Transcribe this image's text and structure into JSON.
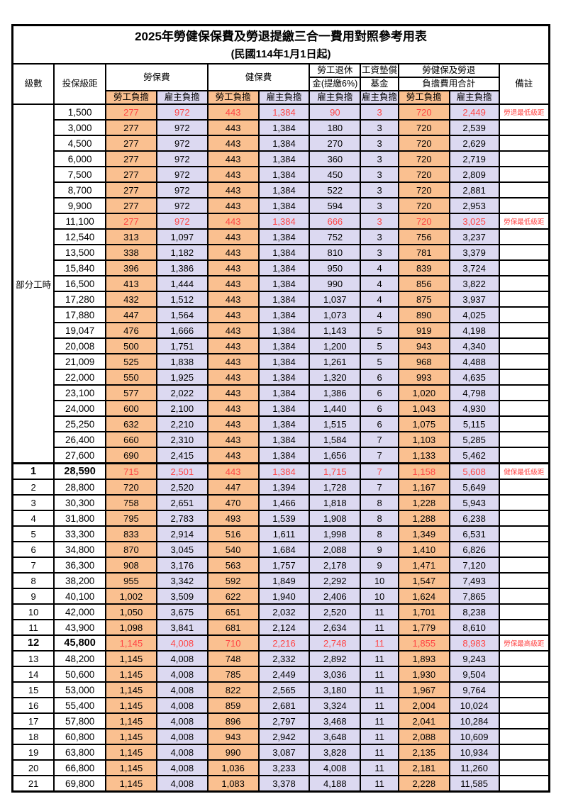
{
  "title": "2025年勞健保保費及勞退提繳三合一費用對照參考用表",
  "subtitle": "(民國114年1月1日起)",
  "columns": {
    "level": "級數",
    "bracket": "投保級距",
    "labor_insurance": "勞保費",
    "health_insurance": "健保費",
    "pension_line1": "勞工退休",
    "pension_line2": "金(提繳6%)",
    "wage_fund_line1": "工資墊償",
    "wage_fund_line2": "基金",
    "total_line1": "勞健保及勞退",
    "total_line2": "負擔費用合計",
    "remark": "備註",
    "employee": "勞工負擔",
    "employer": "雇主負擔"
  },
  "part_time_label": "部分工時",
  "colors": {
    "employee_bg": "#fac090",
    "employer_bg": "#dcd9f1",
    "highlight_text": "#ff4545",
    "border": "#000000"
  },
  "rows": [
    {
      "section": "part_time",
      "level": "",
      "bracket": "1,500",
      "li_emp": "277",
      "li_er": "972",
      "hi_emp": "443",
      "hi_er": "1,384",
      "pension": "90",
      "wage_fund": "3",
      "sum_emp": "720",
      "sum_er": "2,449",
      "note": "勞退最低級距",
      "highlight": true,
      "emphasis": false
    },
    {
      "section": "part_time",
      "level": "",
      "bracket": "3,000",
      "li_emp": "277",
      "li_er": "972",
      "hi_emp": "443",
      "hi_er": "1,384",
      "pension": "180",
      "wage_fund": "3",
      "sum_emp": "720",
      "sum_er": "2,539",
      "note": "",
      "highlight": false,
      "emphasis": false
    },
    {
      "section": "part_time",
      "level": "",
      "bracket": "4,500",
      "li_emp": "277",
      "li_er": "972",
      "hi_emp": "443",
      "hi_er": "1,384",
      "pension": "270",
      "wage_fund": "3",
      "sum_emp": "720",
      "sum_er": "2,629",
      "note": "",
      "highlight": false,
      "emphasis": false
    },
    {
      "section": "part_time",
      "level": "",
      "bracket": "6,000",
      "li_emp": "277",
      "li_er": "972",
      "hi_emp": "443",
      "hi_er": "1,384",
      "pension": "360",
      "wage_fund": "3",
      "sum_emp": "720",
      "sum_er": "2,719",
      "note": "",
      "highlight": false,
      "emphasis": false
    },
    {
      "section": "part_time",
      "level": "",
      "bracket": "7,500",
      "li_emp": "277",
      "li_er": "972",
      "hi_emp": "443",
      "hi_er": "1,384",
      "pension": "450",
      "wage_fund": "3",
      "sum_emp": "720",
      "sum_er": "2,809",
      "note": "",
      "highlight": false,
      "emphasis": false
    },
    {
      "section": "part_time",
      "level": "",
      "bracket": "8,700",
      "li_emp": "277",
      "li_er": "972",
      "hi_emp": "443",
      "hi_er": "1,384",
      "pension": "522",
      "wage_fund": "3",
      "sum_emp": "720",
      "sum_er": "2,881",
      "note": "",
      "highlight": false,
      "emphasis": false
    },
    {
      "section": "part_time",
      "level": "",
      "bracket": "9,900",
      "li_emp": "277",
      "li_er": "972",
      "hi_emp": "443",
      "hi_er": "1,384",
      "pension": "594",
      "wage_fund": "3",
      "sum_emp": "720",
      "sum_er": "2,953",
      "note": "",
      "highlight": false,
      "emphasis": false
    },
    {
      "section": "part_time",
      "level": "",
      "bracket": "11,100",
      "li_emp": "277",
      "li_er": "972",
      "hi_emp": "443",
      "hi_er": "1,384",
      "pension": "666",
      "wage_fund": "3",
      "sum_emp": "720",
      "sum_er": "3,025",
      "note": "勞保最低級距",
      "highlight": true,
      "emphasis": false
    },
    {
      "section": "part_time",
      "level": "",
      "bracket": "12,540",
      "li_emp": "313",
      "li_er": "1,097",
      "hi_emp": "443",
      "hi_er": "1,384",
      "pension": "752",
      "wage_fund": "3",
      "sum_emp": "756",
      "sum_er": "3,237",
      "note": "",
      "highlight": false,
      "emphasis": false
    },
    {
      "section": "part_time",
      "level": "",
      "bracket": "13,500",
      "li_emp": "338",
      "li_er": "1,182",
      "hi_emp": "443",
      "hi_er": "1,384",
      "pension": "810",
      "wage_fund": "3",
      "sum_emp": "781",
      "sum_er": "3,379",
      "note": "",
      "highlight": false,
      "emphasis": false
    },
    {
      "section": "part_time",
      "level": "",
      "bracket": "15,840",
      "li_emp": "396",
      "li_er": "1,386",
      "hi_emp": "443",
      "hi_er": "1,384",
      "pension": "950",
      "wage_fund": "4",
      "sum_emp": "839",
      "sum_er": "3,724",
      "note": "",
      "highlight": false,
      "emphasis": false
    },
    {
      "section": "part_time",
      "level": "",
      "bracket": "16,500",
      "li_emp": "413",
      "li_er": "1,444",
      "hi_emp": "443",
      "hi_er": "1,384",
      "pension": "990",
      "wage_fund": "4",
      "sum_emp": "856",
      "sum_er": "3,822",
      "note": "",
      "highlight": false,
      "emphasis": false
    },
    {
      "section": "part_time",
      "level": "",
      "bracket": "17,280",
      "li_emp": "432",
      "li_er": "1,512",
      "hi_emp": "443",
      "hi_er": "1,384",
      "pension": "1,037",
      "wage_fund": "4",
      "sum_emp": "875",
      "sum_er": "3,937",
      "note": "",
      "highlight": false,
      "emphasis": false
    },
    {
      "section": "part_time",
      "level": "",
      "bracket": "17,880",
      "li_emp": "447",
      "li_er": "1,564",
      "hi_emp": "443",
      "hi_er": "1,384",
      "pension": "1,073",
      "wage_fund": "4",
      "sum_emp": "890",
      "sum_er": "4,025",
      "note": "",
      "highlight": false,
      "emphasis": false
    },
    {
      "section": "part_time",
      "level": "",
      "bracket": "19,047",
      "li_emp": "476",
      "li_er": "1,666",
      "hi_emp": "443",
      "hi_er": "1,384",
      "pension": "1,143",
      "wage_fund": "5",
      "sum_emp": "919",
      "sum_er": "4,198",
      "note": "",
      "highlight": false,
      "emphasis": false
    },
    {
      "section": "part_time",
      "level": "",
      "bracket": "20,008",
      "li_emp": "500",
      "li_er": "1,751",
      "hi_emp": "443",
      "hi_er": "1,384",
      "pension": "1,200",
      "wage_fund": "5",
      "sum_emp": "943",
      "sum_er": "4,340",
      "note": "",
      "highlight": false,
      "emphasis": false
    },
    {
      "section": "part_time",
      "level": "",
      "bracket": "21,009",
      "li_emp": "525",
      "li_er": "1,838",
      "hi_emp": "443",
      "hi_er": "1,384",
      "pension": "1,261",
      "wage_fund": "5",
      "sum_emp": "968",
      "sum_er": "4,488",
      "note": "",
      "highlight": false,
      "emphasis": false
    },
    {
      "section": "part_time",
      "level": "",
      "bracket": "22,000",
      "li_emp": "550",
      "li_er": "1,925",
      "hi_emp": "443",
      "hi_er": "1,384",
      "pension": "1,320",
      "wage_fund": "6",
      "sum_emp": "993",
      "sum_er": "4,635",
      "note": "",
      "highlight": false,
      "emphasis": false
    },
    {
      "section": "part_time",
      "level": "",
      "bracket": "23,100",
      "li_emp": "577",
      "li_er": "2,022",
      "hi_emp": "443",
      "hi_er": "1,384",
      "pension": "1,386",
      "wage_fund": "6",
      "sum_emp": "1,020",
      "sum_er": "4,798",
      "note": "",
      "highlight": false,
      "emphasis": false
    },
    {
      "section": "part_time",
      "level": "",
      "bracket": "24,000",
      "li_emp": "600",
      "li_er": "2,100",
      "hi_emp": "443",
      "hi_er": "1,384",
      "pension": "1,440",
      "wage_fund": "6",
      "sum_emp": "1,043",
      "sum_er": "4,930",
      "note": "",
      "highlight": false,
      "emphasis": false
    },
    {
      "section": "part_time",
      "level": "",
      "bracket": "25,250",
      "li_emp": "632",
      "li_er": "2,210",
      "hi_emp": "443",
      "hi_er": "1,384",
      "pension": "1,515",
      "wage_fund": "6",
      "sum_emp": "1,075",
      "sum_er": "5,115",
      "note": "",
      "highlight": false,
      "emphasis": false
    },
    {
      "section": "part_time",
      "level": "",
      "bracket": "26,400",
      "li_emp": "660",
      "li_er": "2,310",
      "hi_emp": "443",
      "hi_er": "1,384",
      "pension": "1,584",
      "wage_fund": "7",
      "sum_emp": "1,103",
      "sum_er": "5,285",
      "note": "",
      "highlight": false,
      "emphasis": false
    },
    {
      "section": "part_time",
      "level": "",
      "bracket": "27,600",
      "li_emp": "690",
      "li_er": "2,415",
      "hi_emp": "443",
      "hi_er": "1,384",
      "pension": "1,656",
      "wage_fund": "7",
      "sum_emp": "1,133",
      "sum_er": "5,462",
      "note": "",
      "highlight": false,
      "emphasis": false
    },
    {
      "section": "level",
      "level": "1",
      "bracket": "28,590",
      "li_emp": "715",
      "li_er": "2,501",
      "hi_emp": "443",
      "hi_er": "1,384",
      "pension": "1,715",
      "wage_fund": "7",
      "sum_emp": "1,158",
      "sum_er": "5,608",
      "note": "健保最低級距",
      "highlight": true,
      "emphasis": true
    },
    {
      "section": "level",
      "level": "2",
      "bracket": "28,800",
      "li_emp": "720",
      "li_er": "2,520",
      "hi_emp": "447",
      "hi_er": "1,394",
      "pension": "1,728",
      "wage_fund": "7",
      "sum_emp": "1,167",
      "sum_er": "5,649",
      "note": "",
      "highlight": false,
      "emphasis": false
    },
    {
      "section": "level",
      "level": "3",
      "bracket": "30,300",
      "li_emp": "758",
      "li_er": "2,651",
      "hi_emp": "470",
      "hi_er": "1,466",
      "pension": "1,818",
      "wage_fund": "8",
      "sum_emp": "1,228",
      "sum_er": "5,943",
      "note": "",
      "highlight": false,
      "emphasis": false
    },
    {
      "section": "level",
      "level": "4",
      "bracket": "31,800",
      "li_emp": "795",
      "li_er": "2,783",
      "hi_emp": "493",
      "hi_er": "1,539",
      "pension": "1,908",
      "wage_fund": "8",
      "sum_emp": "1,288",
      "sum_er": "6,238",
      "note": "",
      "highlight": false,
      "emphasis": false
    },
    {
      "section": "level",
      "level": "5",
      "bracket": "33,300",
      "li_emp": "833",
      "li_er": "2,914",
      "hi_emp": "516",
      "hi_er": "1,611",
      "pension": "1,998",
      "wage_fund": "8",
      "sum_emp": "1,349",
      "sum_er": "6,531",
      "note": "",
      "highlight": false,
      "emphasis": false
    },
    {
      "section": "level",
      "level": "6",
      "bracket": "34,800",
      "li_emp": "870",
      "li_er": "3,045",
      "hi_emp": "540",
      "hi_er": "1,684",
      "pension": "2,088",
      "wage_fund": "9",
      "sum_emp": "1,410",
      "sum_er": "6,826",
      "note": "",
      "highlight": false,
      "emphasis": false
    },
    {
      "section": "level",
      "level": "7",
      "bracket": "36,300",
      "li_emp": "908",
      "li_er": "3,176",
      "hi_emp": "563",
      "hi_er": "1,757",
      "pension": "2,178",
      "wage_fund": "9",
      "sum_emp": "1,471",
      "sum_er": "7,120",
      "note": "",
      "highlight": false,
      "emphasis": false
    },
    {
      "section": "level",
      "level": "8",
      "bracket": "38,200",
      "li_emp": "955",
      "li_er": "3,342",
      "hi_emp": "592",
      "hi_er": "1,849",
      "pension": "2,292",
      "wage_fund": "10",
      "sum_emp": "1,547",
      "sum_er": "7,493",
      "note": "",
      "highlight": false,
      "emphasis": false
    },
    {
      "section": "level",
      "level": "9",
      "bracket": "40,100",
      "li_emp": "1,002",
      "li_er": "3,509",
      "hi_emp": "622",
      "hi_er": "1,940",
      "pension": "2,406",
      "wage_fund": "10",
      "sum_emp": "1,624",
      "sum_er": "7,865",
      "note": "",
      "highlight": false,
      "emphasis": false
    },
    {
      "section": "level",
      "level": "10",
      "bracket": "42,000",
      "li_emp": "1,050",
      "li_er": "3,675",
      "hi_emp": "651",
      "hi_er": "2,032",
      "pension": "2,520",
      "wage_fund": "11",
      "sum_emp": "1,701",
      "sum_er": "8,238",
      "note": "",
      "highlight": false,
      "emphasis": false
    },
    {
      "section": "level",
      "level": "11",
      "bracket": "43,900",
      "li_emp": "1,098",
      "li_er": "3,841",
      "hi_emp": "681",
      "hi_er": "2,124",
      "pension": "2,634",
      "wage_fund": "11",
      "sum_emp": "1,779",
      "sum_er": "8,610",
      "note": "",
      "highlight": false,
      "emphasis": false
    },
    {
      "section": "level",
      "level": "12",
      "bracket": "45,800",
      "li_emp": "1,145",
      "li_er": "4,008",
      "hi_emp": "710",
      "hi_er": "2,216",
      "pension": "2,748",
      "wage_fund": "11",
      "sum_emp": "1,855",
      "sum_er": "8,983",
      "note": "勞保最高級距",
      "highlight": true,
      "emphasis": true
    },
    {
      "section": "level",
      "level": "13",
      "bracket": "48,200",
      "li_emp": "1,145",
      "li_er": "4,008",
      "hi_emp": "748",
      "hi_er": "2,332",
      "pension": "2,892",
      "wage_fund": "11",
      "sum_emp": "1,893",
      "sum_er": "9,243",
      "note": "",
      "highlight": false,
      "emphasis": false
    },
    {
      "section": "level",
      "level": "14",
      "bracket": "50,600",
      "li_emp": "1,145",
      "li_er": "4,008",
      "hi_emp": "785",
      "hi_er": "2,449",
      "pension": "3,036",
      "wage_fund": "11",
      "sum_emp": "1,930",
      "sum_er": "9,504",
      "note": "",
      "highlight": false,
      "emphasis": false
    },
    {
      "section": "level",
      "level": "15",
      "bracket": "53,000",
      "li_emp": "1,145",
      "li_er": "4,008",
      "hi_emp": "822",
      "hi_er": "2,565",
      "pension": "3,180",
      "wage_fund": "11",
      "sum_emp": "1,967",
      "sum_er": "9,764",
      "note": "",
      "highlight": false,
      "emphasis": false
    },
    {
      "section": "level",
      "level": "16",
      "bracket": "55,400",
      "li_emp": "1,145",
      "li_er": "4,008",
      "hi_emp": "859",
      "hi_er": "2,681",
      "pension": "3,324",
      "wage_fund": "11",
      "sum_emp": "2,004",
      "sum_er": "10,024",
      "note": "",
      "highlight": false,
      "emphasis": false
    },
    {
      "section": "level",
      "level": "17",
      "bracket": "57,800",
      "li_emp": "1,145",
      "li_er": "4,008",
      "hi_emp": "896",
      "hi_er": "2,797",
      "pension": "3,468",
      "wage_fund": "11",
      "sum_emp": "2,041",
      "sum_er": "10,284",
      "note": "",
      "highlight": false,
      "emphasis": false
    },
    {
      "section": "level",
      "level": "18",
      "bracket": "60,800",
      "li_emp": "1,145",
      "li_er": "4,008",
      "hi_emp": "943",
      "hi_er": "2,942",
      "pension": "3,648",
      "wage_fund": "11",
      "sum_emp": "2,088",
      "sum_er": "10,609",
      "note": "",
      "highlight": false,
      "emphasis": false
    },
    {
      "section": "level",
      "level": "19",
      "bracket": "63,800",
      "li_emp": "1,145",
      "li_er": "4,008",
      "hi_emp": "990",
      "hi_er": "3,087",
      "pension": "3,828",
      "wage_fund": "11",
      "sum_emp": "2,135",
      "sum_er": "10,934",
      "note": "",
      "highlight": false,
      "emphasis": false
    },
    {
      "section": "level",
      "level": "20",
      "bracket": "66,800",
      "li_emp": "1,145",
      "li_er": "4,008",
      "hi_emp": "1,036",
      "hi_er": "3,233",
      "pension": "4,008",
      "wage_fund": "11",
      "sum_emp": "2,181",
      "sum_er": "11,260",
      "note": "",
      "highlight": false,
      "emphasis": false
    },
    {
      "section": "level",
      "level": "21",
      "bracket": "69,800",
      "li_emp": "1,145",
      "li_er": "4,008",
      "hi_emp": "1,083",
      "hi_er": "3,378",
      "pension": "4,188",
      "wage_fund": "11",
      "sum_emp": "2,228",
      "sum_er": "11,585",
      "note": "",
      "highlight": false,
      "emphasis": false
    }
  ]
}
